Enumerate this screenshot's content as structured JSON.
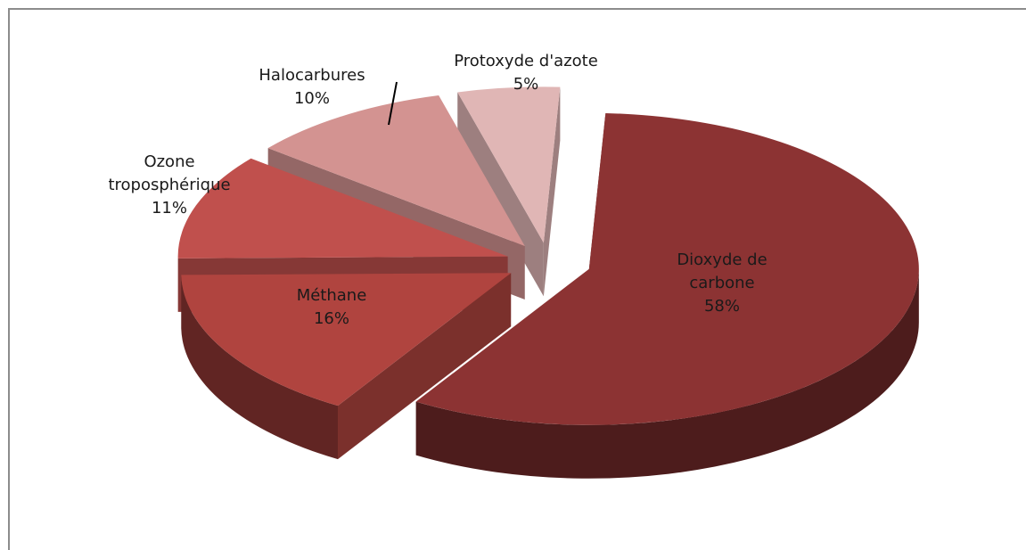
{
  "chart_data": {
    "type": "pie",
    "categories": [
      "Dioxyde de carbone",
      "Méthane",
      "Ozone troposphérique",
      "Halocarbures",
      "Protoxyde d'azote"
    ],
    "values": [
      58,
      16,
      11,
      10,
      5
    ],
    "value_labels": [
      "58%",
      "16%",
      "11%",
      "10%",
      "5%"
    ],
    "colors": [
      "#8c3333",
      "#b0443f",
      "#c0504d",
      "#d39391",
      "#e0b6b5"
    ]
  }
}
